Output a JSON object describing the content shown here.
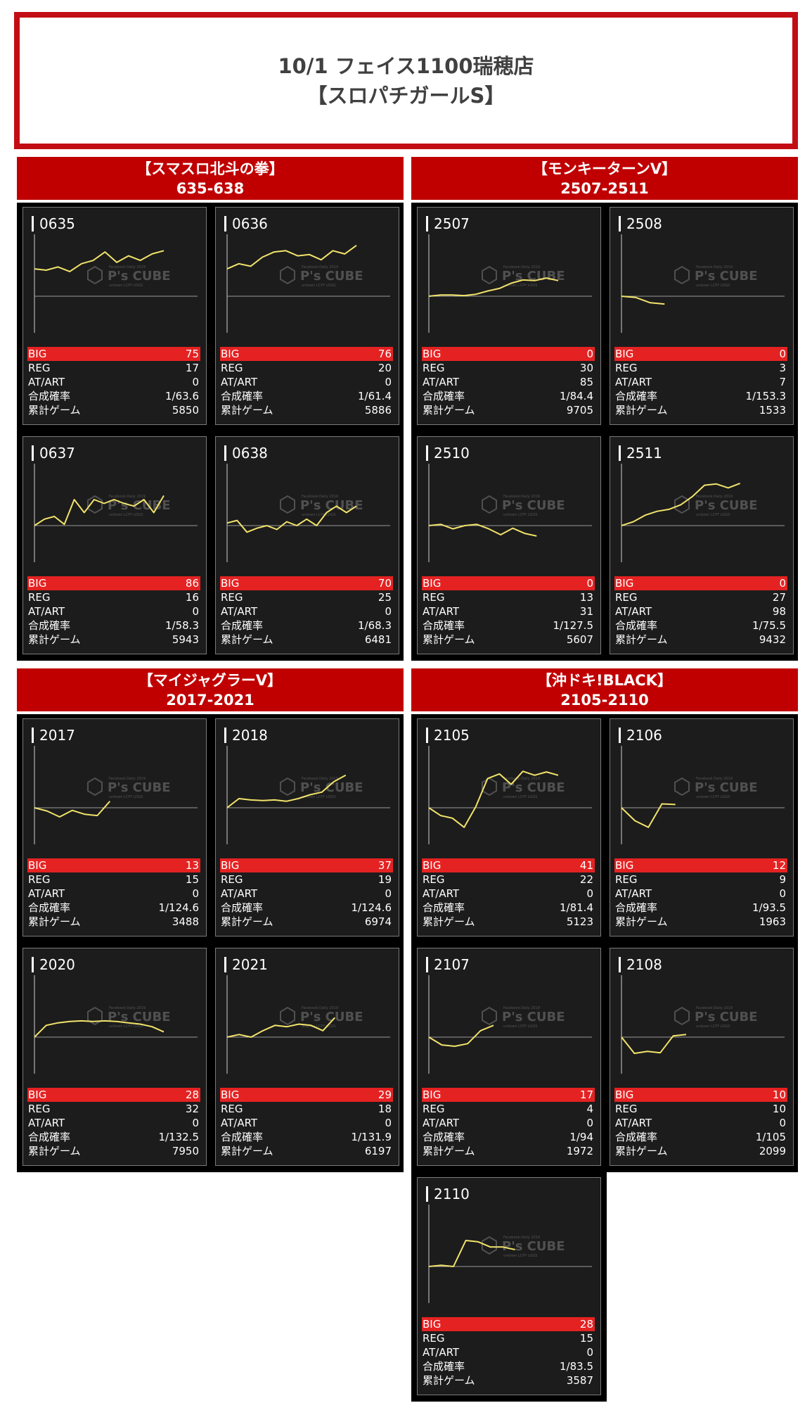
{
  "header": {
    "title_line1": "10/1 フェイス1100瑞穂店",
    "title_line2": "【スロパチガールS】"
  },
  "labels": {
    "big": "BIG",
    "reg": "REG",
    "at": "AT/ART",
    "prob": "合成確率",
    "games": "累計ゲーム"
  },
  "watermark": {
    "brand": "P's CUBE",
    "top_text": "Facebook·Daily 2019",
    "bottom_text": "unkown LCPY LOGS"
  },
  "colors": {
    "title_bar": "#c00000",
    "big_row": "#e52222",
    "chart_line": "#f2e36b",
    "card_bg": "#1c1c1c"
  },
  "sections": [
    {
      "name": "【スマスロ北斗の拳】",
      "range": "635-638",
      "machines": [
        {
          "id": "0635",
          "big": "75",
          "reg": "17",
          "at": "0",
          "prob": "1/63.6",
          "games": "5850",
          "graph": [
            0.42,
            0.4,
            0.45,
            0.38,
            0.5,
            0.55,
            0.68,
            0.52,
            0.62,
            0.55,
            0.65,
            0.7
          ]
        },
        {
          "id": "0636",
          "big": "76",
          "reg": "20",
          "at": "0",
          "prob": "1/61.4",
          "games": "5886",
          "graph": [
            0.42,
            0.5,
            0.46,
            0.6,
            0.68,
            0.7,
            0.62,
            0.64,
            0.56,
            0.7,
            0.65,
            0.78
          ]
        },
        {
          "id": "0637",
          "big": "86",
          "reg": "16",
          "at": "0",
          "prob": "1/58.3",
          "games": "5943",
          "graph": [
            0.0,
            0.1,
            0.14,
            0.02,
            0.4,
            0.2,
            0.4,
            0.34,
            0.4,
            0.34,
            0.3,
            0.4,
            0.2,
            0.46
          ]
        },
        {
          "id": "0638",
          "big": "70",
          "reg": "25",
          "at": "0",
          "prob": "1/68.3",
          "games": "6481",
          "graph": [
            0.04,
            0.08,
            -0.1,
            -0.04,
            0.0,
            -0.06,
            0.06,
            0.0,
            0.1,
            0.0,
            0.2,
            0.3,
            0.2,
            0.3
          ]
        }
      ]
    },
    {
      "name": "【モンキーターンV】",
      "range": "2507-2511",
      "machines": [
        {
          "id": "2507",
          "big": "0",
          "reg": "30",
          "at": "85",
          "prob": "1/84.4",
          "games": "9705",
          "graph": [
            0.0,
            0.02,
            0.02,
            0.01,
            0.03,
            0.08,
            0.12,
            0.2,
            0.25,
            0.24,
            0.28,
            0.24
          ]
        },
        {
          "id": "2508",
          "big": "0",
          "reg": "3",
          "at": "7",
          "prob": "1/153.3",
          "games": "1533",
          "graph": [
            0.0,
            -0.02,
            -0.1,
            -0.12
          ]
        },
        {
          "id": "2510",
          "big": "0",
          "reg": "13",
          "at": "31",
          "prob": "1/127.5",
          "games": "5607",
          "graph": [
            0.0,
            0.02,
            -0.05,
            0.0,
            0.02,
            -0.05,
            -0.14,
            -0.04,
            -0.12,
            -0.16
          ]
        },
        {
          "id": "2511",
          "big": "0",
          "reg": "27",
          "at": "98",
          "prob": "1/75.5",
          "games": "9432",
          "graph": [
            0.0,
            0.06,
            0.16,
            0.22,
            0.25,
            0.32,
            0.45,
            0.62,
            0.64,
            0.58,
            0.65
          ]
        }
      ]
    },
    {
      "name": "【マイジャグラーV】",
      "range": "2017-2021",
      "machines": [
        {
          "id": "2017",
          "big": "13",
          "reg": "15",
          "at": "0",
          "prob": "1/124.6",
          "games": "3488",
          "graph": [
            0.0,
            -0.05,
            -0.14,
            -0.04,
            -0.1,
            -0.12,
            0.1
          ]
        },
        {
          "id": "2018",
          "big": "37",
          "reg": "19",
          "at": "0",
          "prob": "1/124.6",
          "games": "6974",
          "graph": [
            0.0,
            0.14,
            0.12,
            0.11,
            0.12,
            0.1,
            0.14,
            0.2,
            0.24,
            0.4,
            0.5
          ]
        },
        {
          "id": "2020",
          "big": "28",
          "reg": "32",
          "at": "0",
          "prob": "1/132.5",
          "games": "7950",
          "graph": [
            0.0,
            0.18,
            0.22,
            0.24,
            0.25,
            0.24,
            0.25,
            0.24,
            0.22,
            0.2,
            0.16,
            0.08
          ]
        },
        {
          "id": "2021",
          "big": "29",
          "reg": "18",
          "at": "0",
          "prob": "1/131.9",
          "games": "6197",
          "graph": [
            0.0,
            0.04,
            0.0,
            0.1,
            0.18,
            0.16,
            0.2,
            0.18,
            0.1,
            0.3
          ]
        }
      ]
    },
    {
      "name": "【沖ドキ!BLACK】",
      "range": "2105-2110",
      "machines": [
        {
          "id": "2105",
          "big": "41",
          "reg": "22",
          "at": "0",
          "prob": "1/81.4",
          "games": "5123",
          "graph": [
            0.0,
            -0.12,
            -0.16,
            -0.3,
            0.02,
            0.45,
            0.52,
            0.36,
            0.56,
            0.5,
            0.55,
            0.5
          ]
        },
        {
          "id": "2106",
          "big": "12",
          "reg": "9",
          "at": "0",
          "prob": "1/93.5",
          "games": "1963",
          "graph": [
            0.0,
            -0.2,
            -0.3,
            0.06,
            0.05
          ]
        },
        {
          "id": "2107",
          "big": "17",
          "reg": "4",
          "at": "0",
          "prob": "1/94",
          "games": "1972",
          "graph": [
            0.0,
            -0.12,
            -0.14,
            -0.1,
            0.1,
            0.18
          ]
        },
        {
          "id": "2108",
          "big": "10",
          "reg": "10",
          "at": "0",
          "prob": "1/105",
          "games": "2099",
          "graph": [
            0.0,
            -0.25,
            -0.22,
            -0.24,
            0.02,
            0.04
          ]
        },
        {
          "id": "2110",
          "big": "28",
          "reg": "15",
          "at": "0",
          "prob": "1/83.5",
          "games": "3587",
          "graph": [
            0.0,
            0.02,
            0.0,
            0.4,
            0.38,
            0.3,
            0.3,
            0.26
          ]
        }
      ]
    }
  ]
}
